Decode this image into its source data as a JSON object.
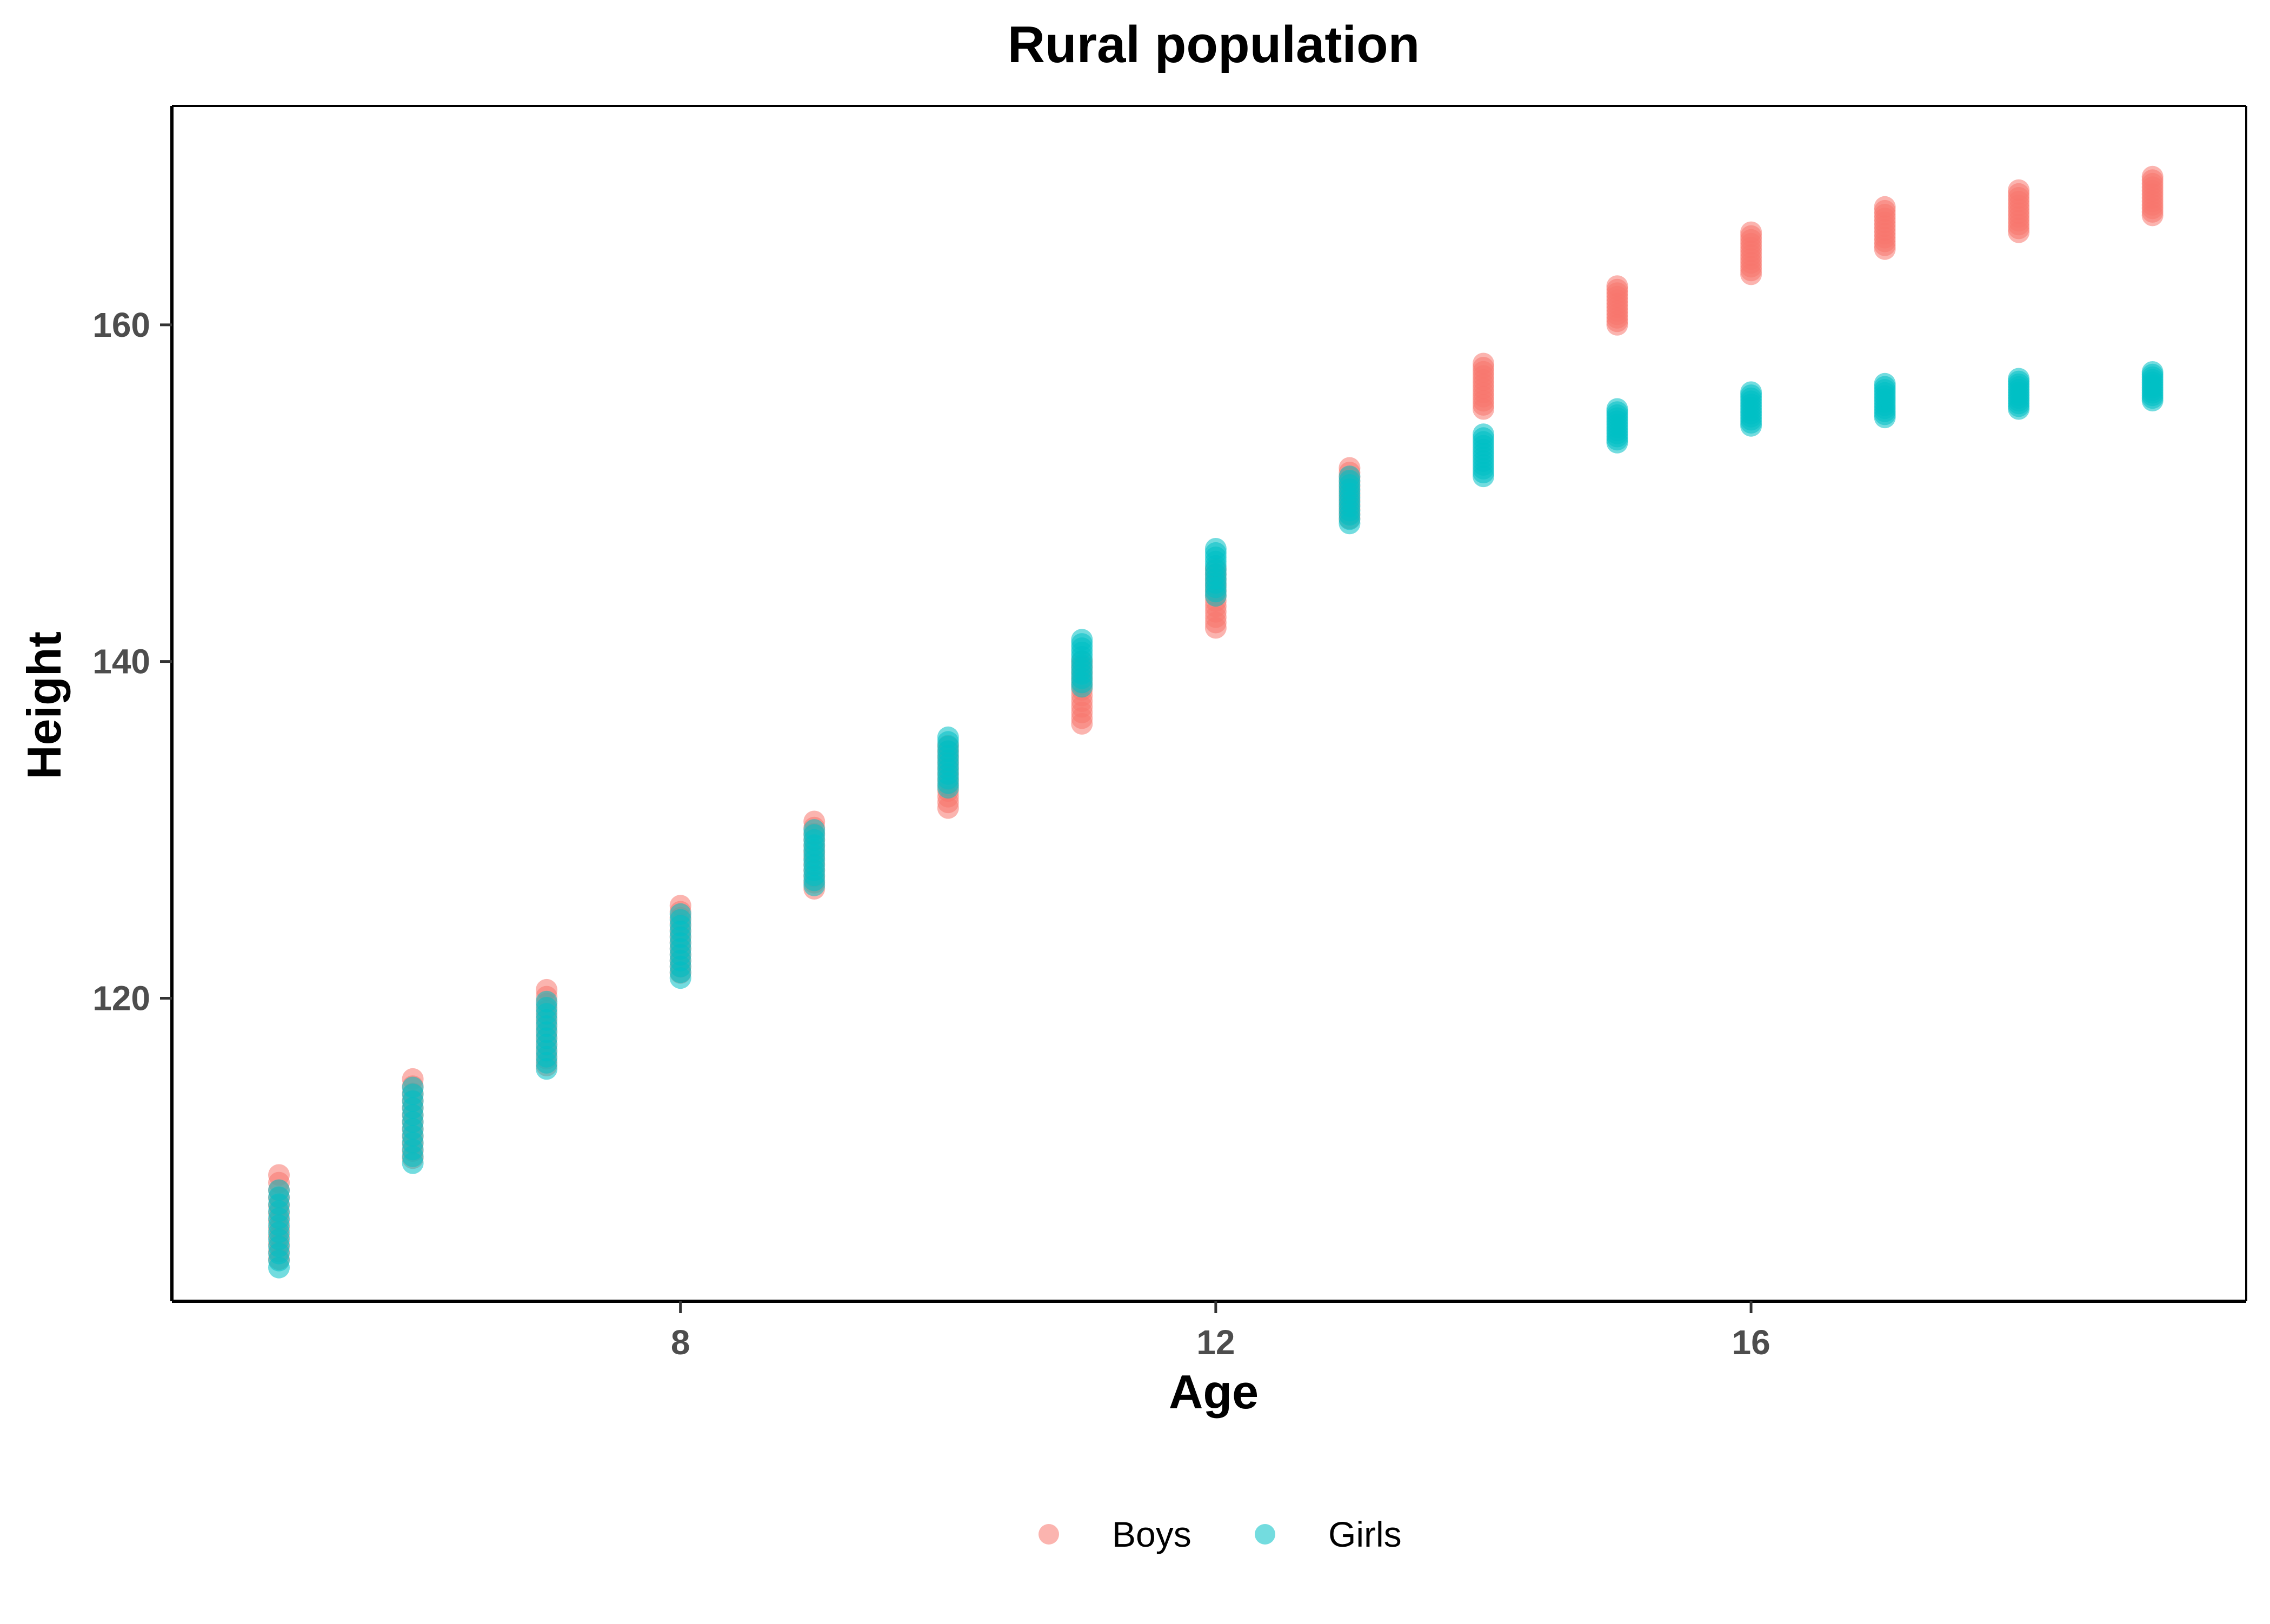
{
  "chart_data": {
    "type": "scatter",
    "title": "Rural population",
    "xlabel": "Age",
    "ylabel": "Height",
    "xlim": [
      4.2,
      19.7
    ],
    "ylim": [
      102,
      173
    ],
    "xticks": [
      8,
      12,
      16
    ],
    "yticks": [
      120,
      140,
      160
    ],
    "grid": false,
    "legend_position": "bottom",
    "series": [
      {
        "name": "Boys",
        "color": "#F8766D",
        "points": [
          {
            "x": 5,
            "range": [
              104.5,
              109.5
            ]
          },
          {
            "x": 6,
            "range": [
              110.5,
              115.2
            ]
          },
          {
            "x": 7,
            "range": [
              116.0,
              120.5
            ]
          },
          {
            "x": 8,
            "range": [
              121.5,
              125.5
            ]
          },
          {
            "x": 9,
            "range": [
              126.5,
              130.5
            ]
          },
          {
            "x": 10,
            "range": [
              131.3,
              135.0
            ]
          },
          {
            "x": 11,
            "range": [
              136.3,
              140.0
            ]
          },
          {
            "x": 12,
            "range": [
              142.0,
              145.5
            ]
          },
          {
            "x": 13,
            "range": [
              148.5,
              151.5
            ]
          },
          {
            "x": 14,
            "range": [
              155.0,
              157.7
            ]
          },
          {
            "x": 15,
            "range": [
              160.0,
              162.3
            ]
          },
          {
            "x": 16,
            "range": [
              163.0,
              165.5
            ]
          },
          {
            "x": 17,
            "range": [
              164.5,
              167.0
            ]
          },
          {
            "x": 18,
            "range": [
              165.5,
              168.0
            ]
          },
          {
            "x": 19,
            "range": [
              166.5,
              168.8
            ]
          }
        ]
      },
      {
        "name": "Girls",
        "color": "#00BFC4",
        "points": [
          {
            "x": 5,
            "range": [
              104.0,
              108.6
            ]
          },
          {
            "x": 6,
            "range": [
              110.2,
              114.7
            ]
          },
          {
            "x": 7,
            "range": [
              115.8,
              119.8
            ]
          },
          {
            "x": 8,
            "range": [
              121.2,
              125.0
            ]
          },
          {
            "x": 9,
            "range": [
              126.7,
              130.0
            ]
          },
          {
            "x": 10,
            "range": [
              132.5,
              135.5
            ]
          },
          {
            "x": 11,
            "range": [
              138.5,
              141.3
            ]
          },
          {
            "x": 12,
            "range": [
              143.9,
              146.7
            ]
          },
          {
            "x": 13,
            "range": [
              148.2,
              151.0
            ]
          },
          {
            "x": 14,
            "range": [
              151.0,
              153.5
            ]
          },
          {
            "x": 15,
            "range": [
              153.0,
              155.0
            ]
          },
          {
            "x": 16,
            "range": [
              154.0,
              156.0
            ]
          },
          {
            "x": 17,
            "range": [
              154.5,
              156.5
            ]
          },
          {
            "x": 18,
            "range": [
              155.0,
              156.8
            ]
          },
          {
            "x": 19,
            "range": [
              155.5,
              157.2
            ]
          }
        ]
      }
    ]
  }
}
